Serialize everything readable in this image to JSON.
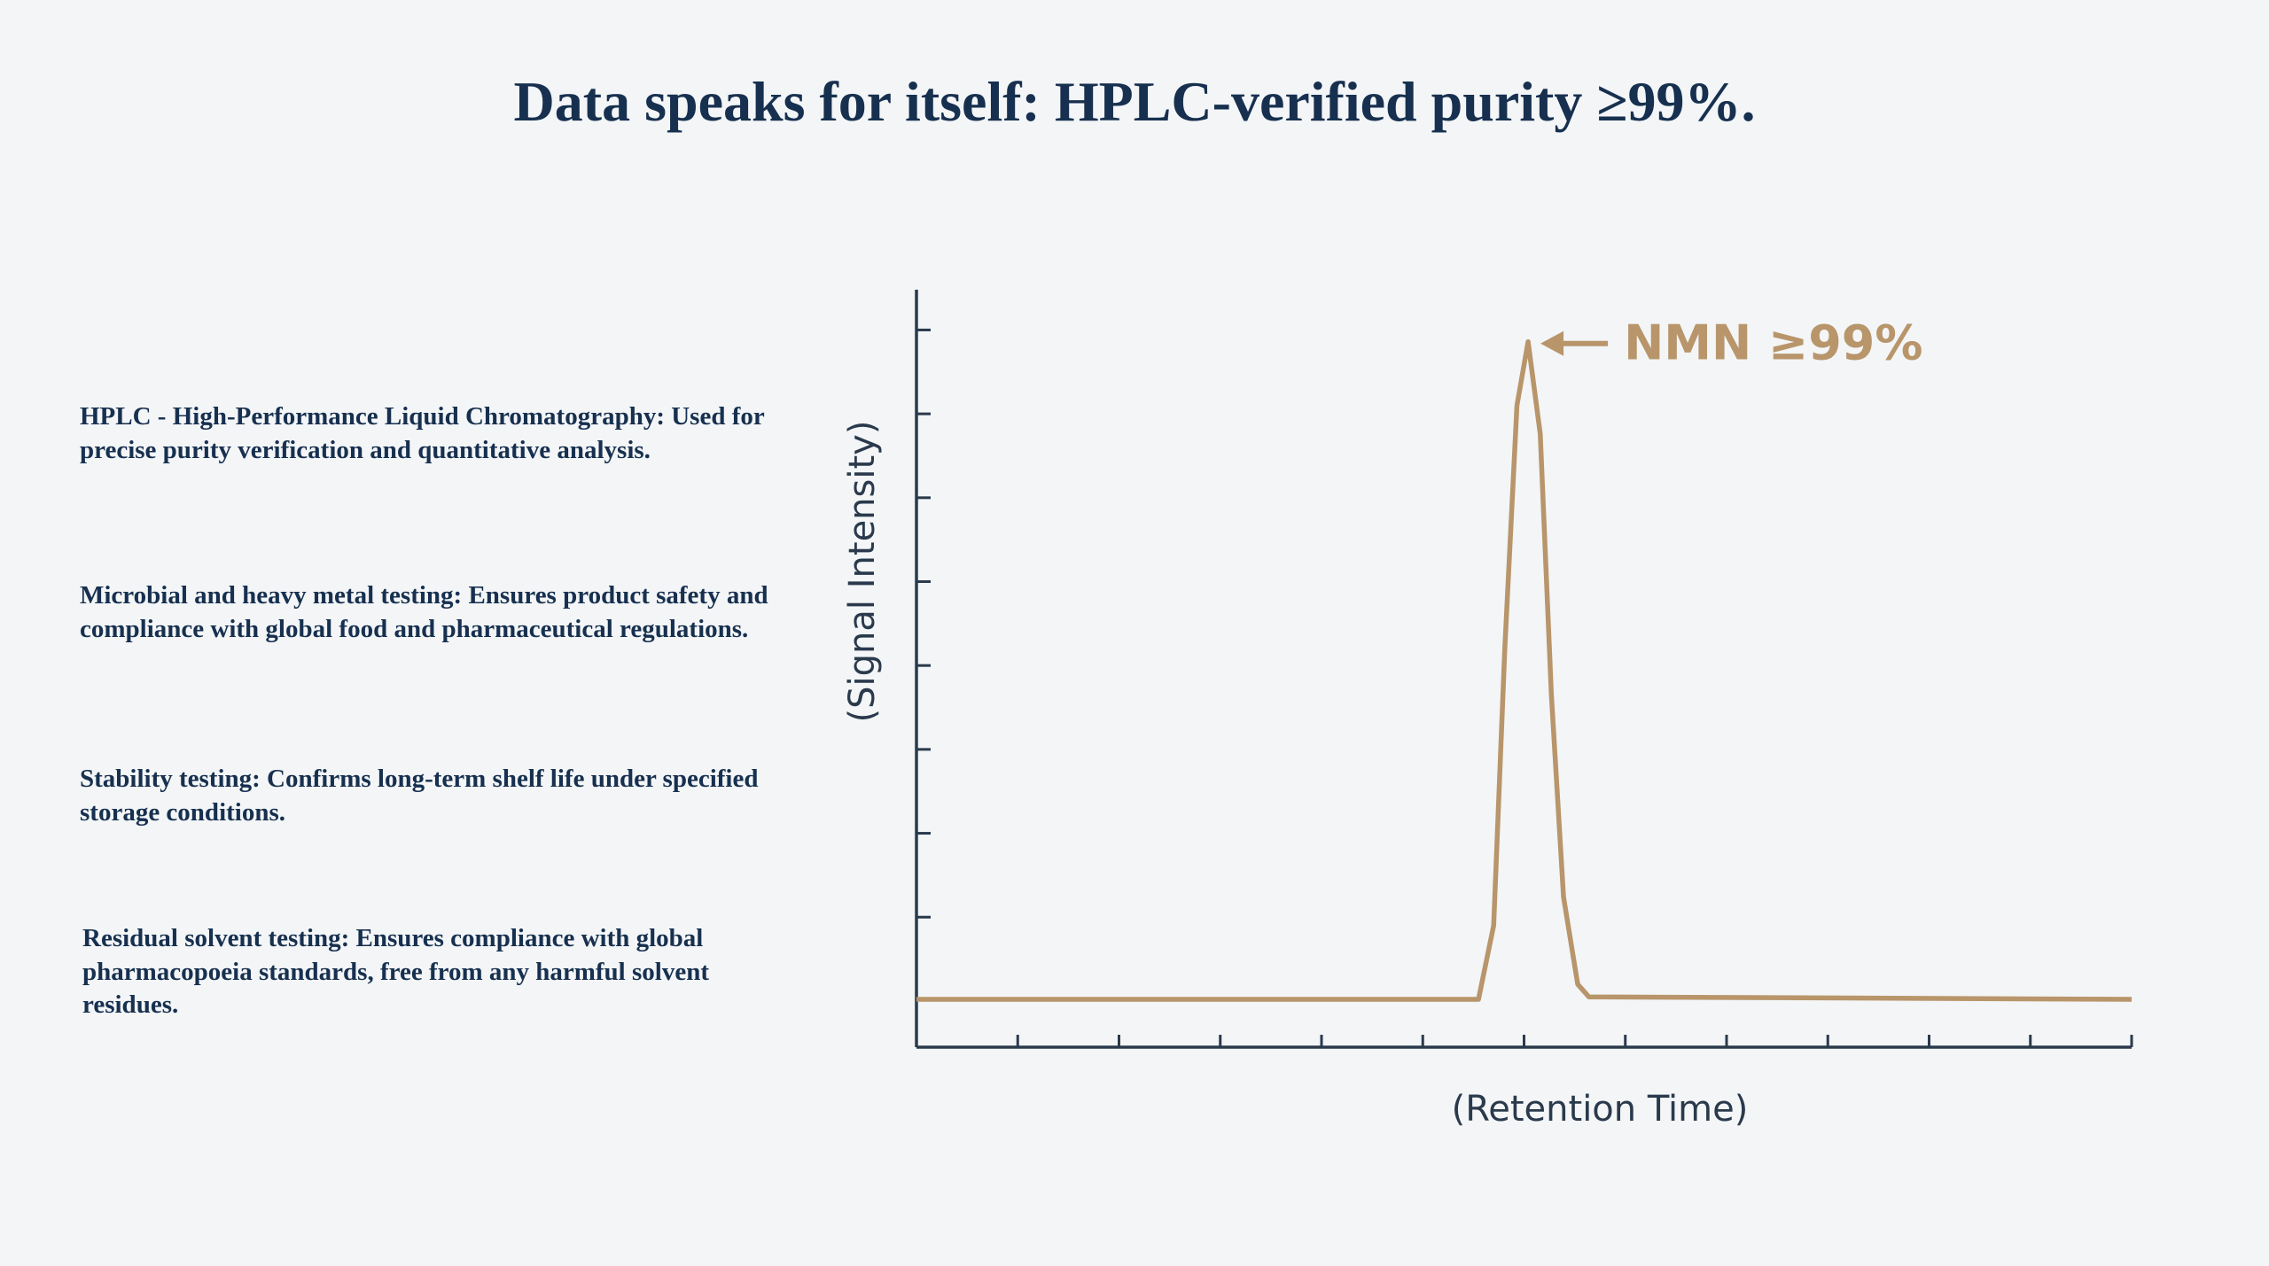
{
  "header": {
    "title": "Data speaks for itself: HPLC-verified purity ≥99%."
  },
  "paragraphs": [
    "HPLC - High-Performance Liquid Chromatography: Used for precise purity verification and quantitative analysis.",
    "Microbial and heavy metal testing: Ensures product safety and compliance with global food and pharmaceutical regulations.",
    "Stability testing: Confirms long-term shelf life under specified storage conditions.",
    "Residual solvent testing: Ensures compliance with global pharmacopoeia standards, free from any harmful solvent residues."
  ],
  "chart_data": {
    "type": "line",
    "x_label": "(Retention Time)",
    "y_label": "(Signal Intensity)",
    "annotation": "NMN ≥99%",
    "color": "#b8956a",
    "x": [
      0,
      5.55,
      5.7,
      5.81,
      5.93,
      6.04,
      6.16,
      6.27,
      6.39,
      6.53,
      6.64,
      12
    ],
    "values": [
      -0.98,
      -0.98,
      -0.1,
      3.2,
      6.1,
      6.86,
      5.76,
      2.65,
      0.24,
      -0.8,
      -0.95,
      -0.98
    ],
    "xlim": [
      0,
      12
    ],
    "xticks": [
      1,
      2,
      3,
      4,
      5,
      6,
      7,
      8,
      9,
      10,
      11,
      12
    ],
    "ylim": [
      -1.55,
      7.48
    ],
    "yticks": [
      0,
      1,
      2,
      3,
      4,
      5,
      6,
      7
    ]
  }
}
